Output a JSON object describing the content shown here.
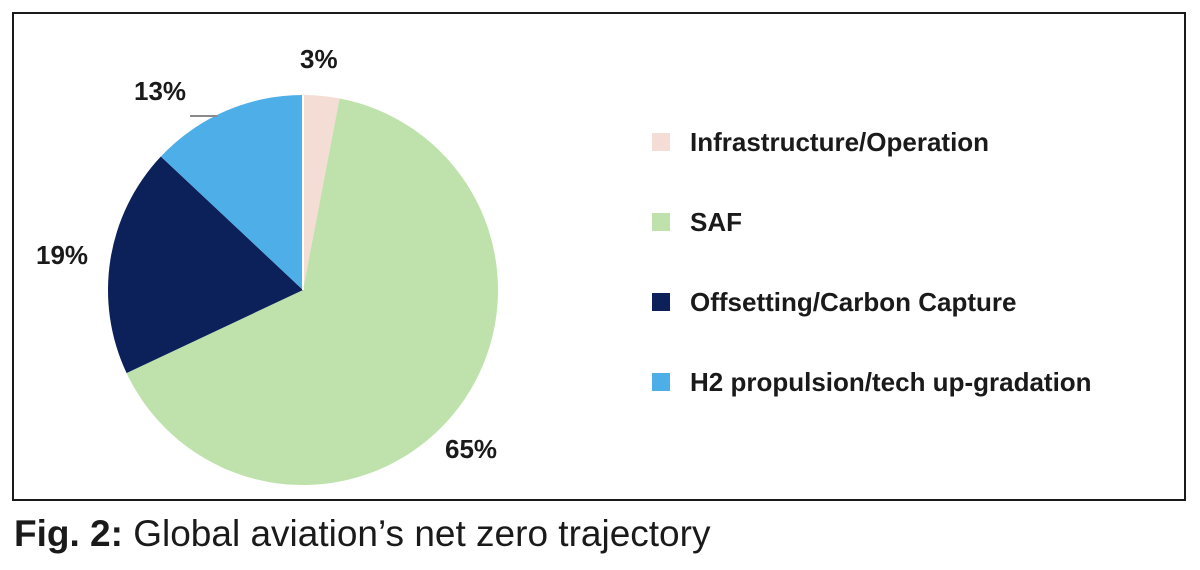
{
  "chart_data": {
    "type": "pie",
    "categories": [
      "Infrastructure/Operation",
      "SAF",
      "Offsetting/Carbon Capture",
      "H2 propulsion/tech up-gradation"
    ],
    "values": [
      3,
      65,
      19,
      13
    ],
    "labels": [
      "3%",
      "65%",
      "19%",
      "13%"
    ],
    "colors": [
      "#f3ddd4",
      "#bfe2ad",
      "#0c2159",
      "#4eaee8"
    ],
    "legend_position": "right"
  },
  "caption": {
    "prefix": "Fig. 2:",
    "text": "Global aviation’s net zero trajectory"
  }
}
